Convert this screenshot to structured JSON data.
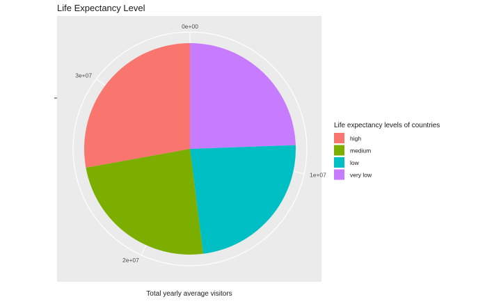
{
  "chart_data": {
    "type": "pie",
    "title": "Life Expectancy Level",
    "xlabel": "Total yearly average visitors",
    "ylabel": "",
    "legend_title": "Life expectancy levels of countries",
    "legend_position": "right",
    "coord": "polar",
    "grid": true,
    "categories": [
      "high",
      "medium",
      "low",
      "very low"
    ],
    "values": [
      9800000,
      8500000,
      8300000,
      8600000
    ],
    "colors": [
      "#F8766D",
      "#7CAE00",
      "#00BFC4",
      "#C77CFF"
    ],
    "axis_ticks": [
      {
        "value": 0,
        "label": "0e+00"
      },
      {
        "value": 10000000,
        "label": "1e+07"
      },
      {
        "value": 20000000,
        "label": "2e+07"
      },
      {
        "value": 30000000,
        "label": "3e+07"
      }
    ],
    "stack_order": [
      "very low",
      "low",
      "medium",
      "high"
    ]
  }
}
